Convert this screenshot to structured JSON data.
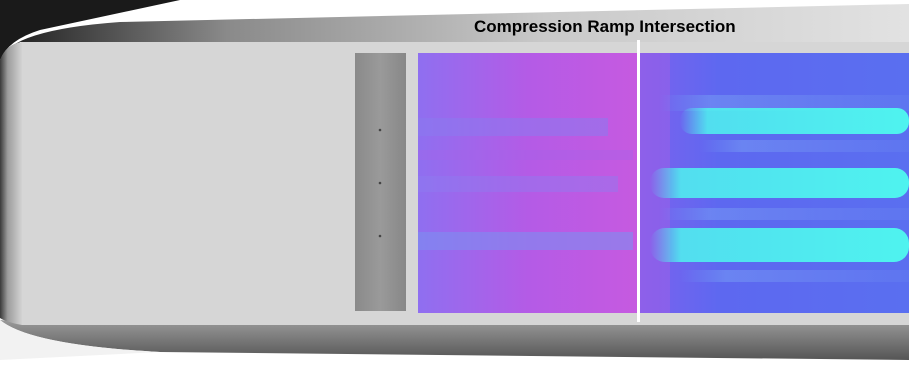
{
  "annotation": {
    "label": "Compression Ramp Intersection"
  },
  "colors": {
    "model_body": "#d6d6d6",
    "model_shadow": "#6e6e6e",
    "insert_strip": "#909090",
    "upstream_heating": "#b25ae8",
    "downstream_heating": "#5b6af0",
    "streak_high_heating": "#4ff3ef",
    "intersection_line": "#ffffff"
  }
}
